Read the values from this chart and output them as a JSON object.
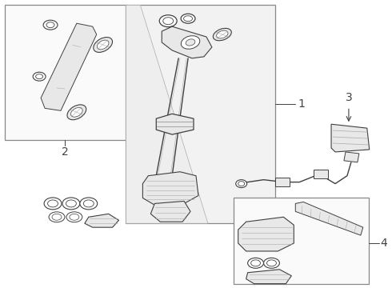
{
  "background_color": "#ffffff",
  "line_color": "#404040",
  "gray_fill": "#e8e8e8",
  "light_fill": "#f2f2f2",
  "box_fill": "#fafafa",
  "label_fontsize": 10
}
